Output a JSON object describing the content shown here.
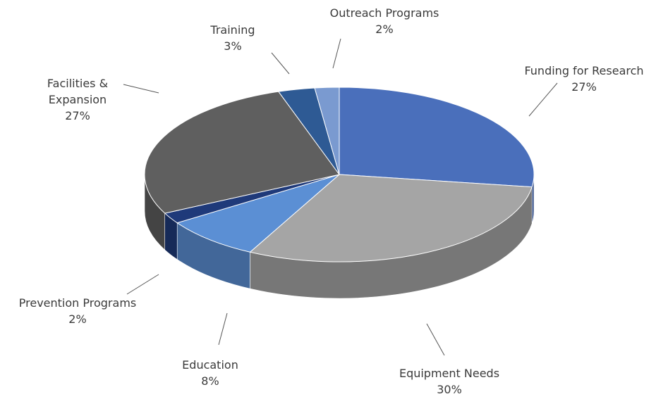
{
  "chart_data": {
    "type": "pie3d",
    "categories": [
      "Funding for Research",
      "Equipment Needs",
      "Education",
      "Prevention Programs",
      "Facilities & Expansion",
      "Training",
      "Outreach Programs"
    ],
    "values": [
      27,
      30,
      8,
      2,
      27,
      3,
      2
    ],
    "value_labels": [
      "27%",
      "30%",
      "8%",
      "2%",
      "27%",
      "3%",
      "2%"
    ],
    "colors": [
      "#4a6fbb",
      "#a5a5a5",
      "#5b8fd4",
      "#1f3a7a",
      "#5f5f5f",
      "#2e5a94",
      "#7a9ad0"
    ]
  }
}
